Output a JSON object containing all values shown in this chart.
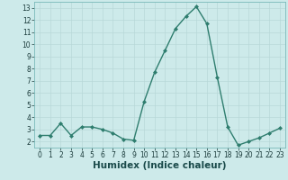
{
  "x": [
    0,
    1,
    2,
    3,
    4,
    5,
    6,
    7,
    8,
    9,
    10,
    11,
    12,
    13,
    14,
    15,
    16,
    17,
    18,
    19,
    20,
    21,
    22,
    23
  ],
  "y": [
    2.5,
    2.5,
    3.5,
    2.5,
    3.2,
    3.2,
    3.0,
    2.7,
    2.2,
    2.1,
    5.3,
    7.7,
    9.5,
    11.3,
    12.3,
    13.1,
    11.7,
    7.3,
    3.2,
    1.7,
    2.0,
    2.3,
    2.7,
    3.1
  ],
  "line_color": "#2e7d6e",
  "marker": "D",
  "marker_size": 2.0,
  "line_width": 1.0,
  "xlabel": "Humidex (Indice chaleur)",
  "xlim": [
    -0.5,
    23.5
  ],
  "ylim": [
    1.5,
    13.5
  ],
  "yticks": [
    2,
    3,
    4,
    5,
    6,
    7,
    8,
    9,
    10,
    11,
    12,
    13
  ],
  "xticks": [
    0,
    1,
    2,
    3,
    4,
    5,
    6,
    7,
    8,
    9,
    10,
    11,
    12,
    13,
    14,
    15,
    16,
    17,
    18,
    19,
    20,
    21,
    22,
    23
  ],
  "bg_color": "#cdeaea",
  "grid_color": "#b8d8d8",
  "tick_fontsize": 5.5,
  "xlabel_fontsize": 7.5
}
